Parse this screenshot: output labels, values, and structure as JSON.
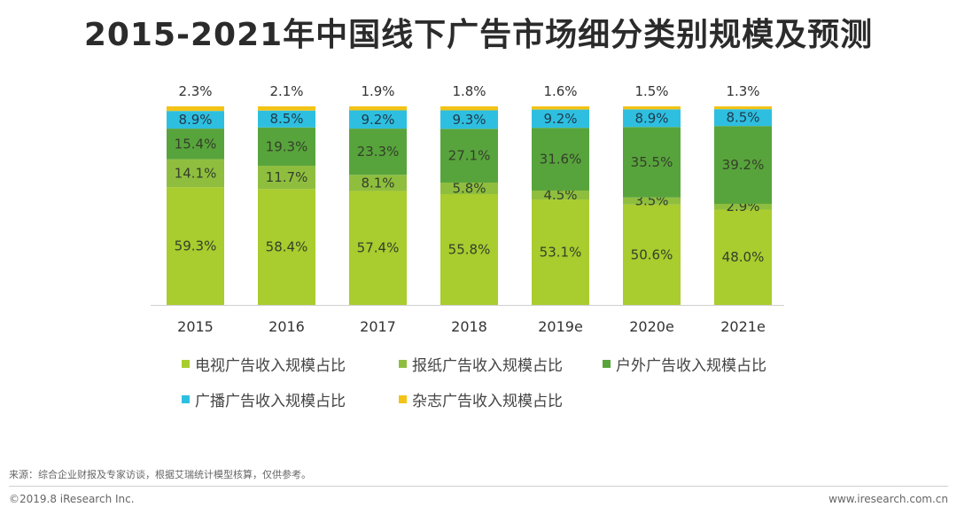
{
  "chart_data": {
    "type": "bar",
    "stacked": true,
    "title": "2015-2021年中国线下广告市场细分类别规模及预测",
    "categories": [
      "2015",
      "2016",
      "2017",
      "2018",
      "2019e",
      "2020e",
      "2021e"
    ],
    "series": [
      {
        "name": "电视广告收入规模占比",
        "color": "#a9cc2e",
        "values": [
          59.3,
          58.4,
          57.4,
          55.8,
          53.1,
          50.6,
          48.0
        ],
        "labels": [
          "59.3%",
          "58.4%",
          "57.4%",
          "55.8%",
          "53.1%",
          "50.6%",
          "48.0%"
        ]
      },
      {
        "name": "报纸广告收入规模占比",
        "color": "#8fbe3f",
        "values": [
          14.1,
          11.7,
          8.1,
          5.8,
          4.5,
          3.5,
          2.9
        ],
        "labels": [
          "14.1%",
          "11.7%",
          "8.1%",
          "5.8%",
          "4.5%",
          "3.5%",
          "2.9%"
        ]
      },
      {
        "name": "户外广告收入规模占比",
        "color": "#58a43c",
        "values": [
          15.4,
          19.3,
          23.3,
          27.1,
          31.6,
          35.5,
          39.2
        ],
        "labels": [
          "15.4%",
          "19.3%",
          "23.3%",
          "27.1%",
          "31.6%",
          "35.5%",
          "39.2%"
        ]
      },
      {
        "name": "广播广告收入规模占比",
        "color": "#2ebfe0",
        "values": [
          8.9,
          8.5,
          9.2,
          9.3,
          9.2,
          8.9,
          8.5
        ],
        "labels": [
          "8.9%",
          "8.5%",
          "9.2%",
          "9.3%",
          "9.2%",
          "8.9%",
          "8.5%"
        ]
      },
      {
        "name": "杂志广告收入规模占比",
        "color": "#f3c316",
        "values": [
          2.3,
          2.1,
          1.9,
          1.8,
          1.6,
          1.5,
          1.3
        ],
        "labels": [
          "2.3%",
          "2.1%",
          "1.9%",
          "1.8%",
          "1.6%",
          "1.5%",
          "1.3%"
        ]
      }
    ],
    "ylim": [
      0,
      100
    ],
    "legend_position": "bottom"
  },
  "footer": {
    "source": "来源：综合企业财报及专家访谈，根据艾瑞统计模型核算，仅供参考。",
    "copyright": "©2019.8 iResearch Inc.",
    "website": "www.iresearch.com.cn"
  }
}
